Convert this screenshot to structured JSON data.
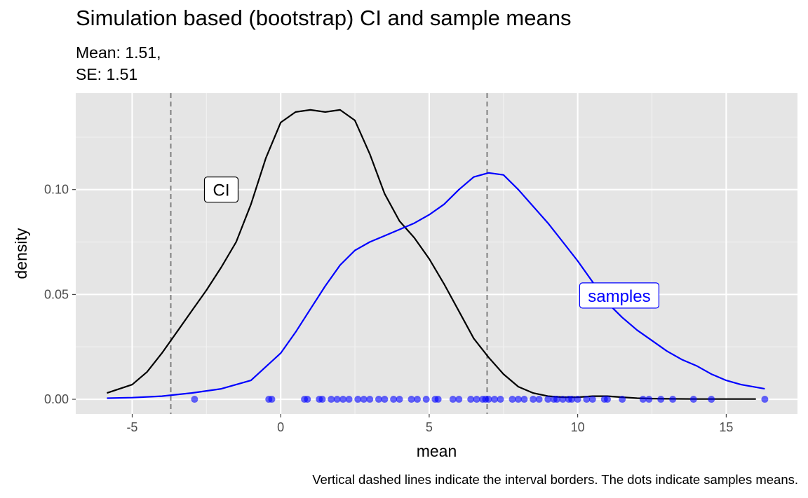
{
  "title": "Simulation based (bootstrap) CI and sample means",
  "subtitle_line1": "Mean: 1.51,",
  "subtitle_line2": "SE: 1.51",
  "caption": "Vertical dashed lines indicate the interval borders. The dots indicate samples means.",
  "chart_data": {
    "type": "line",
    "xlabel": "mean",
    "ylabel": "density",
    "xlim": [
      -6.9,
      17.4
    ],
    "ylim": [
      -0.007,
      0.146
    ],
    "x_ticks": [
      -5,
      0,
      5,
      10,
      15
    ],
    "x_tick_labels": [
      "-5",
      "0",
      "5",
      "10",
      "15"
    ],
    "y_ticks": [
      0.0,
      0.05,
      0.1
    ],
    "y_tick_labels": [
      "0.00",
      "0.05",
      "0.10"
    ],
    "grid": true,
    "background": "#e5e5e5",
    "series": [
      {
        "name": "CI",
        "color": "#000000",
        "x": [
          -5.85,
          -5.0,
          -4.5,
          -4.0,
          -3.5,
          -3.0,
          -2.5,
          -2.0,
          -1.5,
          -1.0,
          -0.5,
          0.0,
          0.5,
          1.0,
          1.5,
          2.0,
          2.5,
          3.0,
          3.5,
          4.0,
          4.5,
          5.0,
          5.5,
          6.0,
          6.5,
          7.0,
          7.5,
          8.0,
          8.5,
          9.0,
          9.5,
          10.0,
          10.5,
          11.0,
          11.5,
          12.0,
          12.5,
          13.0,
          14.0,
          15.0,
          16.0
        ],
        "y": [
          0.003,
          0.007,
          0.013,
          0.022,
          0.032,
          0.042,
          0.052,
          0.063,
          0.075,
          0.093,
          0.115,
          0.132,
          0.137,
          0.138,
          0.137,
          0.138,
          0.133,
          0.117,
          0.098,
          0.085,
          0.077,
          0.067,
          0.055,
          0.042,
          0.029,
          0.02,
          0.012,
          0.006,
          0.003,
          0.0015,
          0.001,
          0.001,
          0.0015,
          0.0015,
          0.001,
          0.0005,
          0.0003,
          0.0002,
          0.0001,
          0.0001,
          0.0001
        ]
      },
      {
        "name": "samples",
        "color": "#0000ff",
        "x": [
          -5.85,
          -5.0,
          -4.0,
          -3.0,
          -2.0,
          -1.0,
          0.0,
          0.5,
          1.0,
          1.5,
          2.0,
          2.5,
          3.0,
          3.5,
          4.0,
          4.5,
          5.0,
          5.5,
          6.0,
          6.5,
          7.0,
          7.5,
          8.0,
          8.5,
          9.0,
          9.5,
          10.0,
          10.5,
          11.0,
          11.5,
          12.0,
          12.5,
          13.0,
          13.5,
          14.0,
          14.5,
          15.0,
          15.5,
          16.3
        ],
        "y": [
          0.0005,
          0.0008,
          0.0015,
          0.003,
          0.005,
          0.009,
          0.022,
          0.032,
          0.043,
          0.054,
          0.064,
          0.071,
          0.075,
          0.078,
          0.081,
          0.084,
          0.088,
          0.093,
          0.1,
          0.106,
          0.108,
          0.107,
          0.1,
          0.092,
          0.084,
          0.075,
          0.066,
          0.056,
          0.046,
          0.039,
          0.033,
          0.028,
          0.023,
          0.019,
          0.016,
          0.012,
          0.009,
          0.007,
          0.005
        ]
      }
    ],
    "dashed_lines_x": [
      -3.7,
      6.95
    ],
    "dashed_line_color": "#808080",
    "sample_means": [
      -2.9,
      -0.4,
      -0.3,
      0.8,
      0.9,
      1.3,
      1.4,
      1.7,
      1.9,
      2.1,
      2.3,
      2.6,
      2.8,
      3.0,
      3.3,
      3.5,
      3.8,
      4.0,
      4.4,
      4.6,
      4.9,
      5.2,
      5.3,
      5.8,
      6.0,
      6.4,
      6.6,
      6.8,
      6.9,
      7.0,
      7.2,
      7.4,
      7.8,
      8.0,
      8.2,
      8.5,
      8.7,
      9.0,
      9.2,
      9.3,
      9.5,
      9.7,
      9.8,
      10.0,
      10.3,
      10.5,
      10.9,
      11.0,
      11.5,
      12.2,
      12.4,
      12.8,
      13.2,
      13.9,
      14.5,
      16.3
    ],
    "points_color": "#0000ff",
    "annotations": [
      {
        "text": "CI",
        "x": -2.0,
        "y": 0.1,
        "color": "#000000"
      },
      {
        "text": "samples",
        "x": 11.4,
        "y": 0.0495,
        "color": "#0000ff"
      }
    ]
  }
}
